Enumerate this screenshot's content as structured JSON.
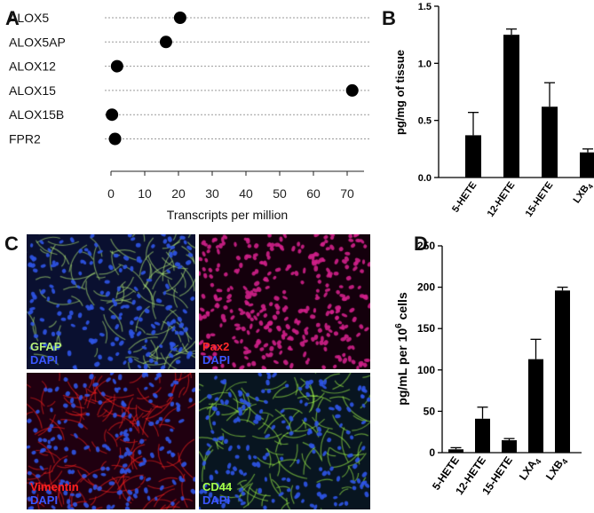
{
  "panel_labels": {
    "a": "A",
    "b": "B",
    "c": "C",
    "d": "D"
  },
  "chart_data": [
    {
      "id": "A",
      "type": "scatter",
      "categories": [
        "ALOX5",
        "ALOX5AP",
        "ALOX12",
        "ALOX15",
        "ALOX15B",
        "FPR2"
      ],
      "values": [
        20.5,
        16.3,
        1.8,
        71.5,
        0.3,
        1.2
      ],
      "xlabel": "Transcripts per million",
      "xticks": [
        "0",
        "10",
        "20",
        "30",
        "40",
        "50",
        "60",
        "70"
      ],
      "xlim": [
        0,
        75
      ]
    },
    {
      "id": "B",
      "type": "bar",
      "categories": [
        "5-HETE",
        "12-HETE",
        "15-HETE",
        "LXB"
      ],
      "category_subscripts": [
        "",
        "",
        "",
        "4"
      ],
      "values": [
        0.37,
        1.25,
        0.62,
        0.22
      ],
      "errors": [
        0.2,
        0.05,
        0.21,
        0.03
      ],
      "ylabel": "pg/mg of tissue",
      "yticks": [
        "0.0",
        "0.5",
        "1.0",
        "1.5"
      ],
      "ylim": [
        0,
        1.5
      ]
    },
    {
      "id": "D",
      "type": "bar",
      "categories": [
        "5-HETE",
        "12-HETE",
        "15-HETE",
        "LXA",
        "LXB"
      ],
      "category_subscripts": [
        "",
        "",
        "",
        "4",
        "4"
      ],
      "values": [
        4,
        41,
        15,
        113,
        196
      ],
      "errors": [
        2,
        14,
        2,
        24,
        4
      ],
      "ylabel_prefix": "pg/mL per 10",
      "ylabel_sup": "6",
      "ylabel_suffix": " cells",
      "yticks": [
        "0",
        "50",
        "100",
        "150",
        "200",
        "250"
      ],
      "ylim": [
        0,
        250
      ]
    }
  ],
  "micrographs": [
    {
      "id": "gfap",
      "line1": "GFAP",
      "line2": "DAPI",
      "color1": "#b8f07a",
      "color2": "#3a56ff"
    },
    {
      "id": "pax2",
      "line1": "Pax2",
      "line2": "DAPI",
      "color1": "#ff2a2a",
      "color2": "#3a56ff"
    },
    {
      "id": "vimentin",
      "line1": "Vimentin",
      "line2": "DAPI",
      "color1": "#ff2020",
      "color2": "#3a56ff"
    },
    {
      "id": "cd44",
      "line1": "CD44",
      "line2": "DAPI",
      "color1": "#a6ff4a",
      "color2": "#3a56ff"
    }
  ]
}
